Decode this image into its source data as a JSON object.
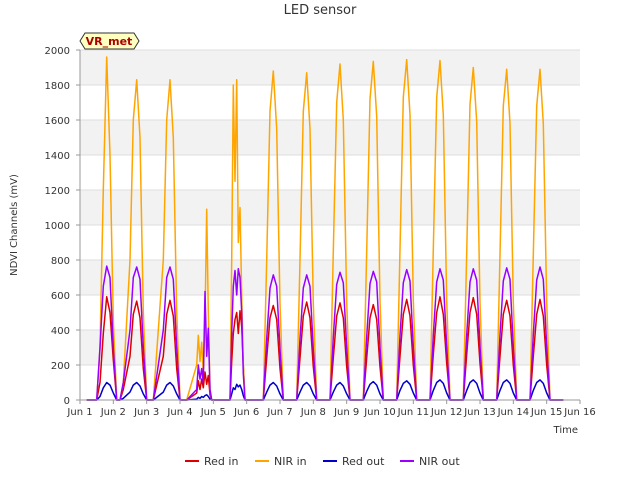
{
  "chart_data": {
    "type": "line",
    "title": "LED sensor",
    "xlabel": "Time",
    "ylabel": "NDVI Channels (mV)",
    "badge": "VR_met",
    "ylim": [
      0,
      2000
    ],
    "yticks": [
      0,
      200,
      400,
      600,
      800,
      1000,
      1200,
      1400,
      1600,
      1800,
      2000
    ],
    "xlim": [
      1,
      16
    ],
    "xticks": [
      1,
      2,
      3,
      4,
      5,
      6,
      7,
      8,
      9,
      10,
      11,
      12,
      13,
      14,
      15,
      16
    ],
    "xtick_labels": [
      "Jun 1",
      "Jun 2",
      "Jun 3",
      "Jun 4",
      "Jun 5",
      "Jun 6",
      "Jun 7",
      "Jun 8",
      "Jun 9",
      "Jun 10",
      "Jun 11",
      "Jun 12",
      "Jun 13",
      "Jun 14",
      "Jun 15",
      "Jun 16"
    ],
    "grid": true,
    "legend_position": "bottom",
    "x": [
      1.2,
      1.5,
      1.6,
      1.7,
      1.8,
      1.9,
      2.0,
      2.1,
      2.2,
      2.3,
      2.5,
      2.6,
      2.7,
      2.8,
      2.9,
      3.0,
      3.1,
      3.2,
      3.5,
      3.6,
      3.7,
      3.8,
      3.9,
      4.0,
      4.1,
      4.2,
      4.5,
      4.55,
      4.6,
      4.65,
      4.7,
      4.75,
      4.8,
      4.85,
      4.9,
      4.95,
      5.0,
      5.05,
      5.1,
      5.15,
      5.2,
      5.5,
      5.55,
      5.6,
      5.65,
      5.7,
      5.75,
      5.8,
      5.85,
      5.9,
      5.95,
      6.0,
      6.05,
      6.1,
      6.2,
      6.5,
      6.6,
      6.7,
      6.8,
      6.9,
      7.0,
      7.1,
      7.2,
      7.5,
      7.6,
      7.7,
      7.8,
      7.9,
      8.0,
      8.1,
      8.2,
      8.5,
      8.6,
      8.7,
      8.8,
      8.9,
      9.0,
      9.1,
      9.2,
      9.5,
      9.6,
      9.7,
      9.8,
      9.9,
      10.0,
      10.1,
      10.2,
      10.5,
      10.6,
      10.7,
      10.8,
      10.9,
      11.0,
      11.1,
      11.2,
      11.5,
      11.6,
      11.7,
      11.8,
      11.9,
      12.0,
      12.1,
      12.2,
      12.5,
      12.6,
      12.7,
      12.8,
      12.9,
      13.0,
      13.1,
      13.2,
      13.5,
      13.6,
      13.7,
      13.8,
      13.9,
      14.0,
      14.1,
      14.2,
      14.5,
      14.6,
      14.7,
      14.8,
      14.9,
      15.0,
      15.1,
      15.2,
      15.5
    ],
    "series": [
      {
        "name": "Red in",
        "color": "#dd0000",
        "values": [
          0,
          0,
          100,
          380,
          590,
          500,
          230,
          0,
          0,
          60,
          250,
          490,
          565,
          470,
          180,
          0,
          0,
          0,
          250,
          490,
          570,
          480,
          180,
          0,
          0,
          0,
          40,
          110,
          60,
          120,
          70,
          160,
          90,
          140,
          30,
          0,
          0,
          0,
          0,
          0,
          0,
          0,
          220,
          380,
          460,
          500,
          380,
          510,
          420,
          200,
          0,
          0,
          0,
          0,
          0,
          0,
          240,
          470,
          540,
          460,
          180,
          0,
          0,
          0,
          240,
          480,
          560,
          470,
          190,
          0,
          0,
          0,
          240,
          480,
          555,
          470,
          190,
          0,
          0,
          0,
          240,
          470,
          545,
          460,
          190,
          0,
          0,
          0,
          250,
          490,
          575,
          480,
          200,
          0,
          0,
          0,
          260,
          500,
          590,
          490,
          210,
          0,
          0,
          0,
          260,
          500,
          585,
          490,
          210,
          0,
          0,
          0,
          250,
          490,
          570,
          480,
          200,
          0,
          0,
          0,
          250,
          490,
          575,
          480,
          200,
          0,
          0,
          0
        ]
      },
      {
        "name": "NIR in",
        "color": "#ffa500",
        "values": [
          0,
          0,
          300,
          1200,
          1960,
          1400,
          450,
          0,
          0,
          100,
          800,
          1600,
          1830,
          1500,
          500,
          0,
          0,
          0,
          800,
          1600,
          1830,
          1500,
          500,
          0,
          0,
          0,
          200,
          370,
          220,
          330,
          150,
          460,
          1090,
          500,
          60,
          0,
          0,
          0,
          0,
          0,
          0,
          0,
          800,
          1800,
          1250,
          1830,
          900,
          1100,
          600,
          200,
          0,
          0,
          0,
          0,
          0,
          0,
          800,
          1650,
          1880,
          1550,
          550,
          0,
          0,
          0,
          800,
          1650,
          1870,
          1550,
          550,
          0,
          0,
          0,
          850,
          1700,
          1920,
          1600,
          560,
          0,
          0,
          0,
          850,
          1720,
          1935,
          1620,
          570,
          0,
          0,
          0,
          860,
          1730,
          1945,
          1630,
          570,
          0,
          0,
          0,
          860,
          1730,
          1940,
          1630,
          570,
          0,
          0,
          0,
          840,
          1690,
          1900,
          1590,
          560,
          0,
          0,
          0,
          830,
          1680,
          1890,
          1580,
          560,
          0,
          0,
          0,
          830,
          1680,
          1890,
          1580,
          560,
          0,
          0,
          0
        ]
      },
      {
        "name": "Red out",
        "color": "#0000cc",
        "values": [
          0,
          0,
          20,
          70,
          100,
          85,
          40,
          0,
          0,
          10,
          45,
          85,
          100,
          80,
          35,
          0,
          0,
          0,
          45,
          85,
          100,
          80,
          35,
          0,
          0,
          0,
          5,
          15,
          10,
          20,
          15,
          25,
          30,
          20,
          5,
          0,
          0,
          0,
          0,
          0,
          0,
          0,
          35,
          70,
          60,
          90,
          75,
          85,
          60,
          25,
          0,
          0,
          0,
          0,
          0,
          0,
          45,
          85,
          100,
          80,
          35,
          0,
          0,
          0,
          45,
          85,
          100,
          80,
          35,
          0,
          0,
          0,
          45,
          85,
          100,
          80,
          35,
          0,
          0,
          0,
          50,
          90,
          105,
          85,
          35,
          0,
          0,
          0,
          55,
          95,
          110,
          90,
          40,
          0,
          0,
          0,
          55,
          100,
          115,
          95,
          40,
          0,
          0,
          0,
          55,
          100,
          115,
          95,
          40,
          0,
          0,
          0,
          55,
          100,
          115,
          95,
          40,
          0,
          0,
          0,
          55,
          100,
          115,
          95,
          40,
          0,
          0,
          0
        ]
      },
      {
        "name": "NIR out",
        "color": "#9900ff",
        "values": [
          0,
          0,
          300,
          650,
          765,
          700,
          300,
          0,
          0,
          100,
          400,
          700,
          760,
          690,
          300,
          0,
          0,
          0,
          400,
          700,
          760,
          690,
          300,
          0,
          0,
          0,
          60,
          200,
          120,
          180,
          100,
          620,
          250,
          410,
          60,
          0,
          0,
          0,
          0,
          0,
          0,
          0,
          380,
          650,
          740,
          600,
          750,
          700,
          500,
          150,
          0,
          0,
          0,
          0,
          0,
          0,
          350,
          640,
          715,
          650,
          290,
          0,
          0,
          0,
          350,
          640,
          715,
          650,
          290,
          0,
          0,
          0,
          360,
          660,
          730,
          670,
          300,
          0,
          0,
          0,
          360,
          665,
          735,
          675,
          300,
          0,
          0,
          0,
          365,
          670,
          745,
          680,
          305,
          0,
          0,
          0,
          370,
          675,
          750,
          685,
          305,
          0,
          0,
          0,
          370,
          675,
          750,
          685,
          305,
          0,
          0,
          0,
          370,
          680,
          755,
          690,
          305,
          0,
          0,
          0,
          375,
          685,
          760,
          690,
          305,
          0,
          0,
          0
        ]
      }
    ]
  }
}
